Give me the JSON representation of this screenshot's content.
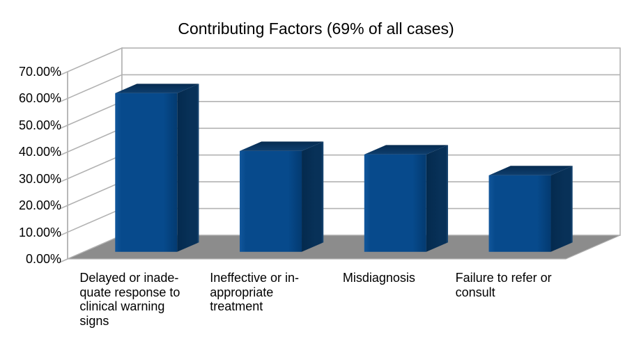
{
  "title": "Contributing Factors (69% of all cases)",
  "chart_data": {
    "type": "bar",
    "projection": "3d",
    "title": "Contributing Factors (69% of all cases)",
    "categories": [
      "Delayed or inadequate response to clinical warning signs",
      "Ineffective or inappropriate treatment",
      "Misdiagnosis",
      "Failure to refer or consult"
    ],
    "category_labels_display": [
      "Delayed or inade-\nquate response to\nclinical warning\nsigns",
      "Ineffective or in-\nappropriate\ntreatment",
      "Misdiagnosis",
      "Failure to refer or\nconsult"
    ],
    "values": [
      59.3,
      37.7,
      36.4,
      28.6
    ],
    "unit": "%",
    "ylim": [
      0,
      70
    ],
    "y_tick_step": 10,
    "y_tick_labels": [
      "0.00%",
      "10.00%",
      "20.00%",
      "30.00%",
      "40.00%",
      "50.00%",
      "60.00%",
      "70.00%"
    ],
    "grid": true,
    "legend": "none",
    "colors": {
      "bar_front": "#074a8c",
      "bar_front_light": "#11569b",
      "bar_front_dark": "#033a70",
      "bar_top_back": "#062b50",
      "bar_top_front": "#0e3e6e",
      "bar_side": "#083158",
      "bar_side_dark": "#042a4e",
      "bar_side_edge": "#1b4a76",
      "floor": "#8c8c8c",
      "line": "#b2b2b2",
      "text": "#000000",
      "background": "#ffffff"
    }
  }
}
